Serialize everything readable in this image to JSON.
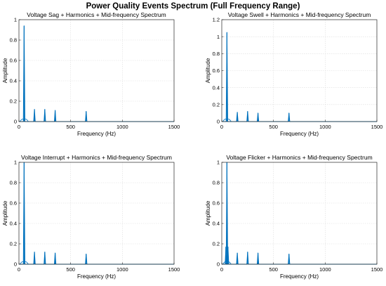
{
  "figure": {
    "title": "Power Quality Events Spectrum (Full Frequency Range)"
  },
  "chart_data": [
    {
      "type": "line",
      "title": "Voltage Sag + Harmonics + Mid-frequency Spectrum",
      "xlabel": "Frequency (Hz)",
      "ylabel": "Amplitude",
      "xlim": [
        0,
        1500
      ],
      "ylim": [
        0,
        1
      ],
      "xticks": [
        0,
        500,
        1000,
        1500
      ],
      "yticks": [
        0,
        0.2,
        0.4,
        0.6,
        0.8,
        1
      ],
      "ytick_labels": [
        "0",
        "0.2",
        "0.4",
        "0.6",
        "0.8",
        "1"
      ],
      "grid": true,
      "color": "#0072BD",
      "peaks": [
        {
          "x": 50,
          "y": 0.94
        },
        {
          "x": 150,
          "y": 0.12
        },
        {
          "x": 250,
          "y": 0.12
        },
        {
          "x": 350,
          "y": 0.11
        },
        {
          "x": 650,
          "y": 0.1
        }
      ]
    },
    {
      "type": "line",
      "title": "Voltage Swell + Harmonics + Mid-frequency Spectrum",
      "xlabel": "Frequency (Hz)",
      "ylabel": "Amplitude",
      "xlim": [
        0,
        1500
      ],
      "ylim": [
        0,
        1.2
      ],
      "xticks": [
        0,
        500,
        1000,
        1500
      ],
      "yticks": [
        0,
        0.2,
        0.4,
        0.6,
        0.8,
        1,
        1.2
      ],
      "ytick_labels": [
        "0",
        "0.2",
        "0.4",
        "0.6",
        "0.8",
        "1",
        "1.2"
      ],
      "grid": true,
      "color": "#0072BD",
      "peaks": [
        {
          "x": 50,
          "y": 1.05
        },
        {
          "x": 150,
          "y": 0.11
        },
        {
          "x": 250,
          "y": 0.12
        },
        {
          "x": 350,
          "y": 0.1
        },
        {
          "x": 650,
          "y": 0.1
        }
      ]
    },
    {
      "type": "line",
      "title": "Voltage Interrupt + Harmonics + Mid-frequency Spectrum",
      "xlabel": "Frequency (Hz)",
      "ylabel": "Amplitude",
      "xlim": [
        0,
        1500
      ],
      "ylim": [
        0,
        1
      ],
      "xticks": [
        0,
        500,
        1000,
        1500
      ],
      "yticks": [
        0,
        0.2,
        0.4,
        0.6,
        0.8,
        1
      ],
      "ytick_labels": [
        "0",
        "0.2",
        "0.4",
        "0.6",
        "0.8",
        "1"
      ],
      "grid": true,
      "color": "#0072BD",
      "peaks": [
        {
          "x": 50,
          "y": 1.0
        },
        {
          "x": 150,
          "y": 0.12
        },
        {
          "x": 250,
          "y": 0.12
        },
        {
          "x": 350,
          "y": 0.11
        },
        {
          "x": 650,
          "y": 0.1
        }
      ]
    },
    {
      "type": "line",
      "title": "Voltage Flicker + Harmonics + Mid-frequency Spectrum",
      "xlabel": "Frequency (Hz)",
      "ylabel": "Amplitude",
      "xlim": [
        0,
        1500
      ],
      "ylim": [
        0,
        1
      ],
      "xticks": [
        0,
        500,
        1000,
        1500
      ],
      "yticks": [
        0,
        0.2,
        0.4,
        0.6,
        0.8,
        1
      ],
      "ytick_labels": [
        "0",
        "0.2",
        "0.4",
        "0.6",
        "0.8",
        "1"
      ],
      "grid": true,
      "color": "#0072BD",
      "peaks": [
        {
          "x": 40,
          "y": 0.17
        },
        {
          "x": 50,
          "y": 1.0
        },
        {
          "x": 60,
          "y": 0.17
        },
        {
          "x": 150,
          "y": 0.11
        },
        {
          "x": 250,
          "y": 0.12
        },
        {
          "x": 350,
          "y": 0.11
        },
        {
          "x": 650,
          "y": 0.1
        }
      ]
    }
  ]
}
